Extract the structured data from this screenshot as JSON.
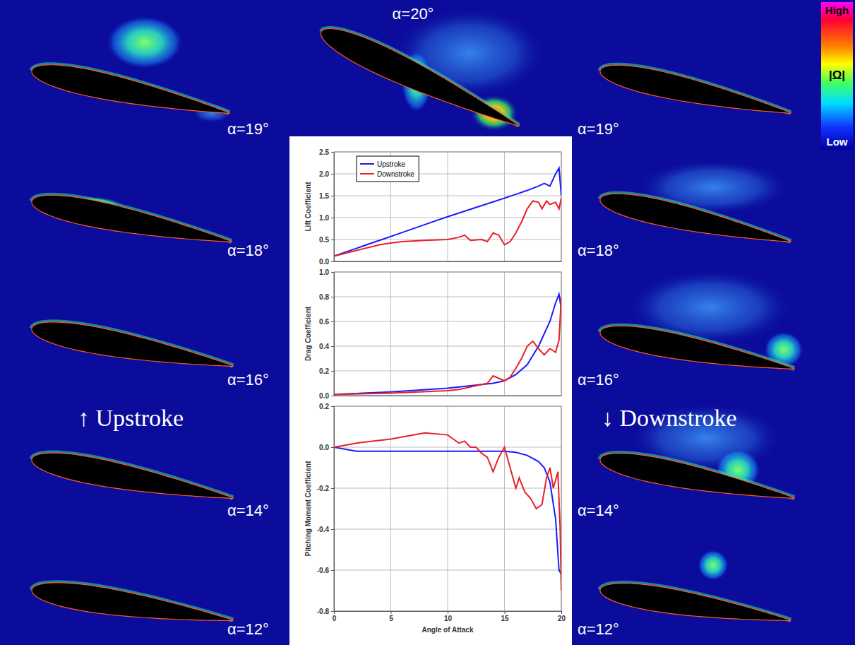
{
  "figure": {
    "colorbar": {
      "high": "High",
      "label": "|Ω|",
      "low": "Low"
    },
    "upstroke_label": "↑ Upstroke",
    "downstroke_label": "↓ Downstroke",
    "top_panel": "α=20°",
    "left_panels": [
      "α=19°",
      "α=18°",
      "α=16°",
      "α=14°",
      "α=12°"
    ],
    "right_panels": [
      "α=19°",
      "α=18°",
      "α=16°",
      "α=14°",
      "α=12°"
    ]
  },
  "chart_data": [
    {
      "type": "line",
      "ylabel": "Lift Coefficient",
      "xlim": [
        0,
        20
      ],
      "xticks": [
        0,
        5,
        10,
        15,
        20
      ],
      "ylim": [
        0,
        2.5
      ],
      "yticks": [
        {
          "value": 0,
          "label": "0.0"
        },
        0.5,
        {
          "value": 1,
          "label": "1.0"
        },
        1.5,
        {
          "value": 2,
          "label": "2.0"
        },
        2.5
      ],
      "grid": true,
      "legend": "top-left",
      "tick_labels": "y",
      "series": [
        {
          "name": "Upstroke",
          "color": "#1a1aff",
          "x": [
            0,
            2,
            4,
            6,
            8,
            10,
            12,
            14,
            16,
            17,
            18,
            18.5,
            19,
            19.5,
            19.8,
            20
          ],
          "values": [
            0.12,
            0.3,
            0.48,
            0.66,
            0.84,
            1.02,
            1.19,
            1.36,
            1.53,
            1.62,
            1.72,
            1.78,
            1.72,
            2.0,
            2.13,
            1.5
          ]
        },
        {
          "name": "Downstroke",
          "color": "#e8202a",
          "x": [
            20,
            19.8,
            19.5,
            19,
            18.7,
            18.3,
            18,
            17.5,
            17,
            16.5,
            16,
            15.5,
            15,
            14.5,
            14,
            13.5,
            13,
            12,
            11.5,
            11,
            10,
            8,
            6,
            5,
            4,
            2,
            0
          ],
          "values": [
            1.45,
            1.2,
            1.35,
            1.3,
            1.38,
            1.2,
            1.35,
            1.38,
            1.2,
            0.9,
            0.65,
            0.45,
            0.38,
            0.6,
            0.65,
            0.45,
            0.5,
            0.48,
            0.6,
            0.55,
            0.5,
            0.48,
            0.45,
            0.42,
            0.38,
            0.25,
            0.12
          ]
        }
      ]
    },
    {
      "type": "line",
      "ylabel": "Drag Coefficient",
      "xlim": [
        0,
        20
      ],
      "xticks": [
        0,
        5,
        10,
        15,
        20
      ],
      "ylim": [
        0,
        1
      ],
      "yticks": [
        {
          "value": 0,
          "label": "0.0"
        },
        0.2,
        0.4,
        0.6,
        0.8,
        {
          "value": 1,
          "label": "1.0"
        }
      ],
      "grid": true,
      "tick_labels": "y",
      "series": [
        {
          "color": "#1a1aff",
          "x": [
            0,
            5,
            10,
            14,
            15,
            16,
            17,
            18,
            19,
            19.5,
            19.8,
            20
          ],
          "values": [
            0.01,
            0.03,
            0.06,
            0.1,
            0.12,
            0.17,
            0.25,
            0.4,
            0.6,
            0.75,
            0.82,
            0.7
          ]
        },
        {
          "color": "#e8202a",
          "x": [
            20,
            19.8,
            19.5,
            19,
            18.5,
            18,
            17.5,
            17,
            16.5,
            16,
            15.5,
            15,
            14.5,
            14,
            13.5,
            13,
            12,
            11,
            10,
            5,
            0
          ],
          "values": [
            0.8,
            0.45,
            0.35,
            0.38,
            0.33,
            0.38,
            0.44,
            0.4,
            0.3,
            0.22,
            0.15,
            0.12,
            0.14,
            0.16,
            0.1,
            0.09,
            0.07,
            0.05,
            0.04,
            0.02,
            0.01
          ]
        }
      ]
    },
    {
      "type": "line",
      "ylabel": "Pitching  Moment  Coefficient",
      "xlabel": "Angle of Attack",
      "xlim": [
        0,
        20
      ],
      "xticks": [
        0,
        5,
        10,
        15,
        20
      ],
      "ylim": [
        -0.8,
        0.2
      ],
      "yticks": [
        -0.8,
        -0.6,
        -0.4,
        -0.2,
        {
          "value": 0,
          "label": "0.0"
        },
        0.2
      ],
      "grid": true,
      "tick_labels": true,
      "series": [
        {
          "color": "#1a1aff",
          "x": [
            0,
            2,
            5,
            10,
            15,
            16,
            17,
            18,
            18.5,
            19,
            19.5,
            19.8,
            20
          ],
          "values": [
            0,
            -0.02,
            -0.02,
            -0.02,
            -0.02,
            -0.025,
            -0.04,
            -0.07,
            -0.1,
            -0.17,
            -0.35,
            -0.6,
            -0.62
          ]
        },
        {
          "color": "#e8202a",
          "x": [
            20,
            19.9,
            19.7,
            19.3,
            19,
            18.7,
            18.3,
            17.8,
            17.3,
            16.8,
            16.3,
            16,
            15.5,
            15,
            14.5,
            14,
            13.5,
            13,
            12.5,
            12,
            11.5,
            11,
            10,
            8,
            5,
            2,
            0
          ],
          "values": [
            -0.7,
            -0.4,
            -0.12,
            -0.2,
            -0.1,
            -0.15,
            -0.28,
            -0.3,
            -0.25,
            -0.22,
            -0.15,
            -0.2,
            -0.1,
            0,
            -0.05,
            -0.12,
            -0.05,
            -0.03,
            0,
            0,
            0.03,
            0.02,
            0.06,
            0.07,
            0.04,
            0.02,
            0
          ]
        }
      ]
    }
  ]
}
